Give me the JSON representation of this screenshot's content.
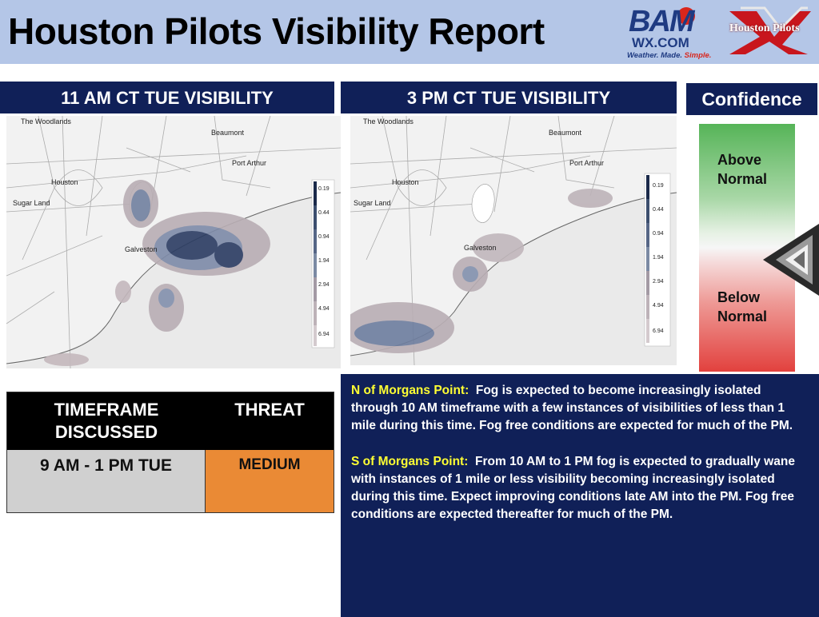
{
  "header": {
    "title": "Houston Pilots Visibility Report",
    "bam_logo": {
      "mark": "BAM",
      "domain": "WX.COM",
      "tagline_a": "Weather. Made.",
      "tagline_b": "Simple."
    },
    "pilots_logo": {
      "text": "Houston Pilots"
    }
  },
  "maps": [
    {
      "title": "11 AM CT TUE VISIBILITY",
      "places": [
        "The Woodlands",
        "Beaumont",
        "Port Arthur",
        "Houston",
        "Sugar Land",
        "Galveston"
      ],
      "legend": [
        "0.19",
        "0.44",
        "0.94",
        "1.94",
        "2.94",
        "4.94",
        "6.94"
      ]
    },
    {
      "title": "3 PM CT TUE VISIBILITY",
      "places": [
        "The Woodlands",
        "Beaumont",
        "Port Arthur",
        "Houston",
        "Sugar Land",
        "Galveston"
      ],
      "legend": [
        "0.19",
        "0.44",
        "0.94",
        "1.94",
        "2.94",
        "4.94",
        "6.94"
      ]
    }
  ],
  "confidence": {
    "title": "Confidence",
    "above": "Above\nNormal",
    "below": "Below\nNormal",
    "indicator_icon": "chevron-left-icon",
    "colors": {
      "top": "#56b458",
      "bottom": "#e2413e"
    }
  },
  "threat_table": {
    "col_timeframe": "TIMEFRAME\nDISCUSSED",
    "col_threat": "THREAT",
    "timeframe": "9 AM - 1 PM TUE",
    "threat": "MEDIUM",
    "threat_color": "#ea8a35"
  },
  "discussion": {
    "north_label": "N of Morgans Point:",
    "north_text": "Fog is expected to become increasingly isolated through 10 AM timeframe with a few instances of visibilities of less than 1 mile during this time.  Fog free conditions are expected for much of the PM.",
    "south_label": "S of Morgans Point:",
    "south_text": "From 10 AM to 1 PM fog is expected to gradually wane with instances of 1 mile or less visibility becoming increasingly isolated during this time.  Expect improving conditions late AM into the PM.  Fog free conditions are expected thereafter for much of the PM."
  },
  "colors": {
    "banner": "#102058",
    "header_bg": "#b4c6e7",
    "highlight": "#ffff33"
  }
}
